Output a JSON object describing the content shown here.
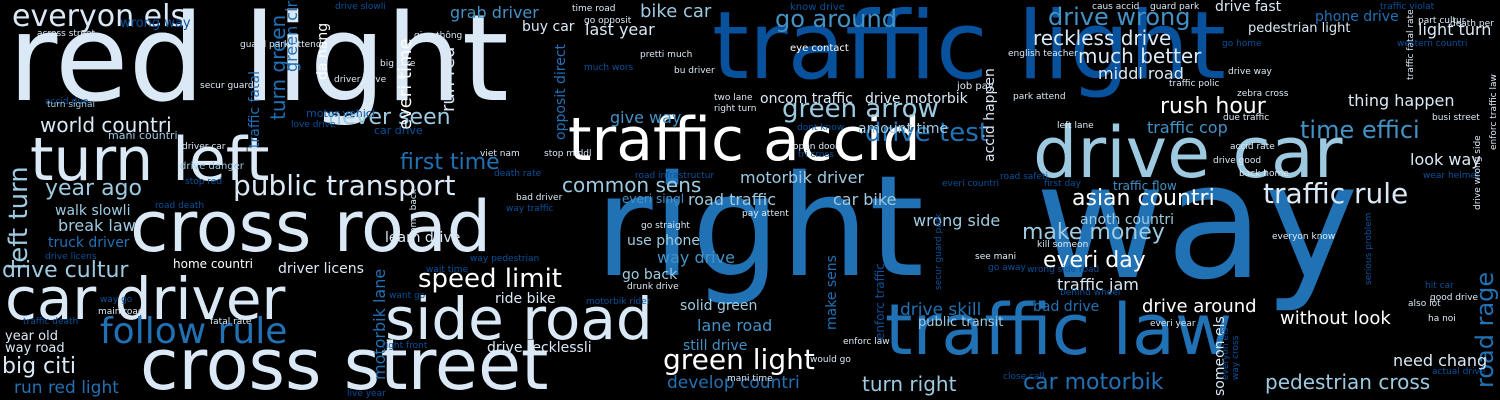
{
  "colors": {
    "background": "#000000",
    "c1": "#ffffff",
    "c2": "#dbe9f6",
    "c3": "#9ecae1",
    "c4": "#4292c6",
    "c5": "#2171b5",
    "c6": "#08519c",
    "c7": "#08306b"
  },
  "words": {
    "w001": "right",
    "w002": "way",
    "w003": "red light",
    "w004": "traffic light",
    "w005": "traffic law",
    "w006": "traffic accid",
    "w007": "drive car",
    "w008": "cross road",
    "w009": "cross street",
    "w010": "car driver",
    "w011": "turn left",
    "w012": "side road",
    "w013": "everyon els",
    "w014": "follow rule",
    "w015": "public transport",
    "w016": "speed limit",
    "w017": "green light",
    "w018": "drive test",
    "w019": "green arrow",
    "w020": "go around",
    "w021": "drive wrong",
    "w022": "reckless drive",
    "w023": "much better",
    "w024": "middl road",
    "w025": "rush hour",
    "w026": "time effici",
    "w027": "asian countri",
    "w028": "traffic rule",
    "w029": "world countri",
    "w030": "year ago",
    "w031": "drive cultur",
    "w032": "big citi",
    "w033": "run red light",
    "w034": "turn right",
    "w035": "car motorbik",
    "w036": "pedestrian cross",
    "w037": "never seen",
    "w038": "first time",
    "w039": "common sens",
    "w040": "make money",
    "w041": "everi day",
    "w042": "traffic jam",
    "w043": "drive around",
    "w044": "without look",
    "w045": "left turn",
    "w046": "road rage",
    "w047": "break law",
    "w048": "walk slowli",
    "w049": "truck driver",
    "w050": "bike car",
    "w051": "grab driver",
    "w052": "last year",
    "w053": "buy car",
    "w054": "run red",
    "w055": "give way",
    "w056": "oncom traffic",
    "w057": "drive motorbik",
    "w058": "amount time",
    "w059": "motorbik driver",
    "w060": "car bike",
    "w061": "road traffic",
    "w062": "wrong side",
    "w063": "traffic cop",
    "w064": "thing happen",
    "w065": "look way",
    "w066": "use phone",
    "w067": "way drive",
    "w068": "go back",
    "w069": "ride bike",
    "w070": "learn drive",
    "w071": "driver licens",
    "w072": "home countri",
    "w073": "lane road",
    "w074": "solid green",
    "w075": "develop countri",
    "w076": "still drive",
    "w077": "drive recklessli",
    "w078": "need chang",
    "w079": "drive fast",
    "w080": "phone drive",
    "w081": "pedestrian light",
    "w082": "light turn",
    "w083": "anoth countri",
    "w084": "traffic flow",
    "w085": "drive skill",
    "w086": "bad drive",
    "w087": "public transit",
    "w088": "year old",
    "w089": "way road",
    "w090": "everi singl",
    "w091": "motorbik lane",
    "w092": "make sens",
    "w093": "enforc traffic",
    "w094": "turn green",
    "w095": "everi time",
    "w096": "green circl",
    "w097": "da nang",
    "w098": "traffic fatal",
    "w099": "accid happen",
    "w100": "someon els",
    "w101": "opposit direct",
    "w102": "mani countri",
    "w103": "drive danger",
    "w104": "motor vehicl",
    "w105": "car drive",
    "w106": "eye contact",
    "w107": "job pay",
    "w108": "english teacher",
    "w109": "guard park",
    "w110": "caus accid",
    "w111": "know drive",
    "w112": "traffic violat",
    "w113": "death per",
    "w114": "part cultur",
    "w115": "go home",
    "w116": "drive way",
    "w117": "zebra cross",
    "w118": "due traffic",
    "w119": "accid rate",
    "w120": "busi street",
    "w121": "drive good",
    "w122": "back home",
    "w123": "wear helmet",
    "w124": "everyon know",
    "w125": "hit car",
    "w126": "good drive",
    "w127": "also lot",
    "w128": "ha noi",
    "w129": "actual drive",
    "w130": "across street",
    "w131": "accid due",
    "w132": "turn signal",
    "w133": "secur guard",
    "w134": "driver car",
    "w135": "stop red",
    "w136": "road death",
    "w137": "drive licens",
    "w138": "way go",
    "w139": "main road",
    "w140": "traffic death",
    "w141": "fatal rate",
    "w142": "right front",
    "w143": "wrong way",
    "w144": "drive slowli",
    "w145": "time road",
    "w146": "go opposit",
    "w147": "big bike",
    "w148": "giao thông",
    "w149": "love drive",
    "w150": "driver drive",
    "w151": "guard park attend",
    "w152": "bu driver",
    "w153": "much wors",
    "w154": "pretti much",
    "w155": "two lane",
    "w156": "right turn",
    "w157": "park attend",
    "w158": "left lane",
    "w159": "open door",
    "w160": "tri cross",
    "w161": "dont know",
    "w162": "road infrastructur",
    "w163": "drunk drive",
    "w164": "death rate",
    "w165": "viet nam",
    "w166": "road safeti",
    "w167": "everi countri",
    "w168": "first day",
    "w169": "traffic polic",
    "w170": "kill someon",
    "w171": "see mani",
    "w172": "go away",
    "w173": "wrong side road",
    "w174": "secur guard park",
    "w175": "behind wheel",
    "w176": "motorbik rider",
    "w177": "everi year",
    "w178": "enforc law",
    "w179": "would go",
    "w180": "close call",
    "w181": "mani time",
    "w182": "live year",
    "w183": "way pedestrian",
    "w184": "want go",
    "w185": "wait time",
    "w186": "way traffic",
    "w187": "bad driver",
    "w188": "come back",
    "w189": "stop middl",
    "w190": "go straight",
    "w191": "pay attent",
    "w192": "traffic fatal rate",
    "w193": "western countri",
    "w194": "serious problem",
    "w195": "drive wrong side",
    "w196": "enforc traffic law",
    "w197": "everyon els",
    "w198": "way cross"
  }
}
